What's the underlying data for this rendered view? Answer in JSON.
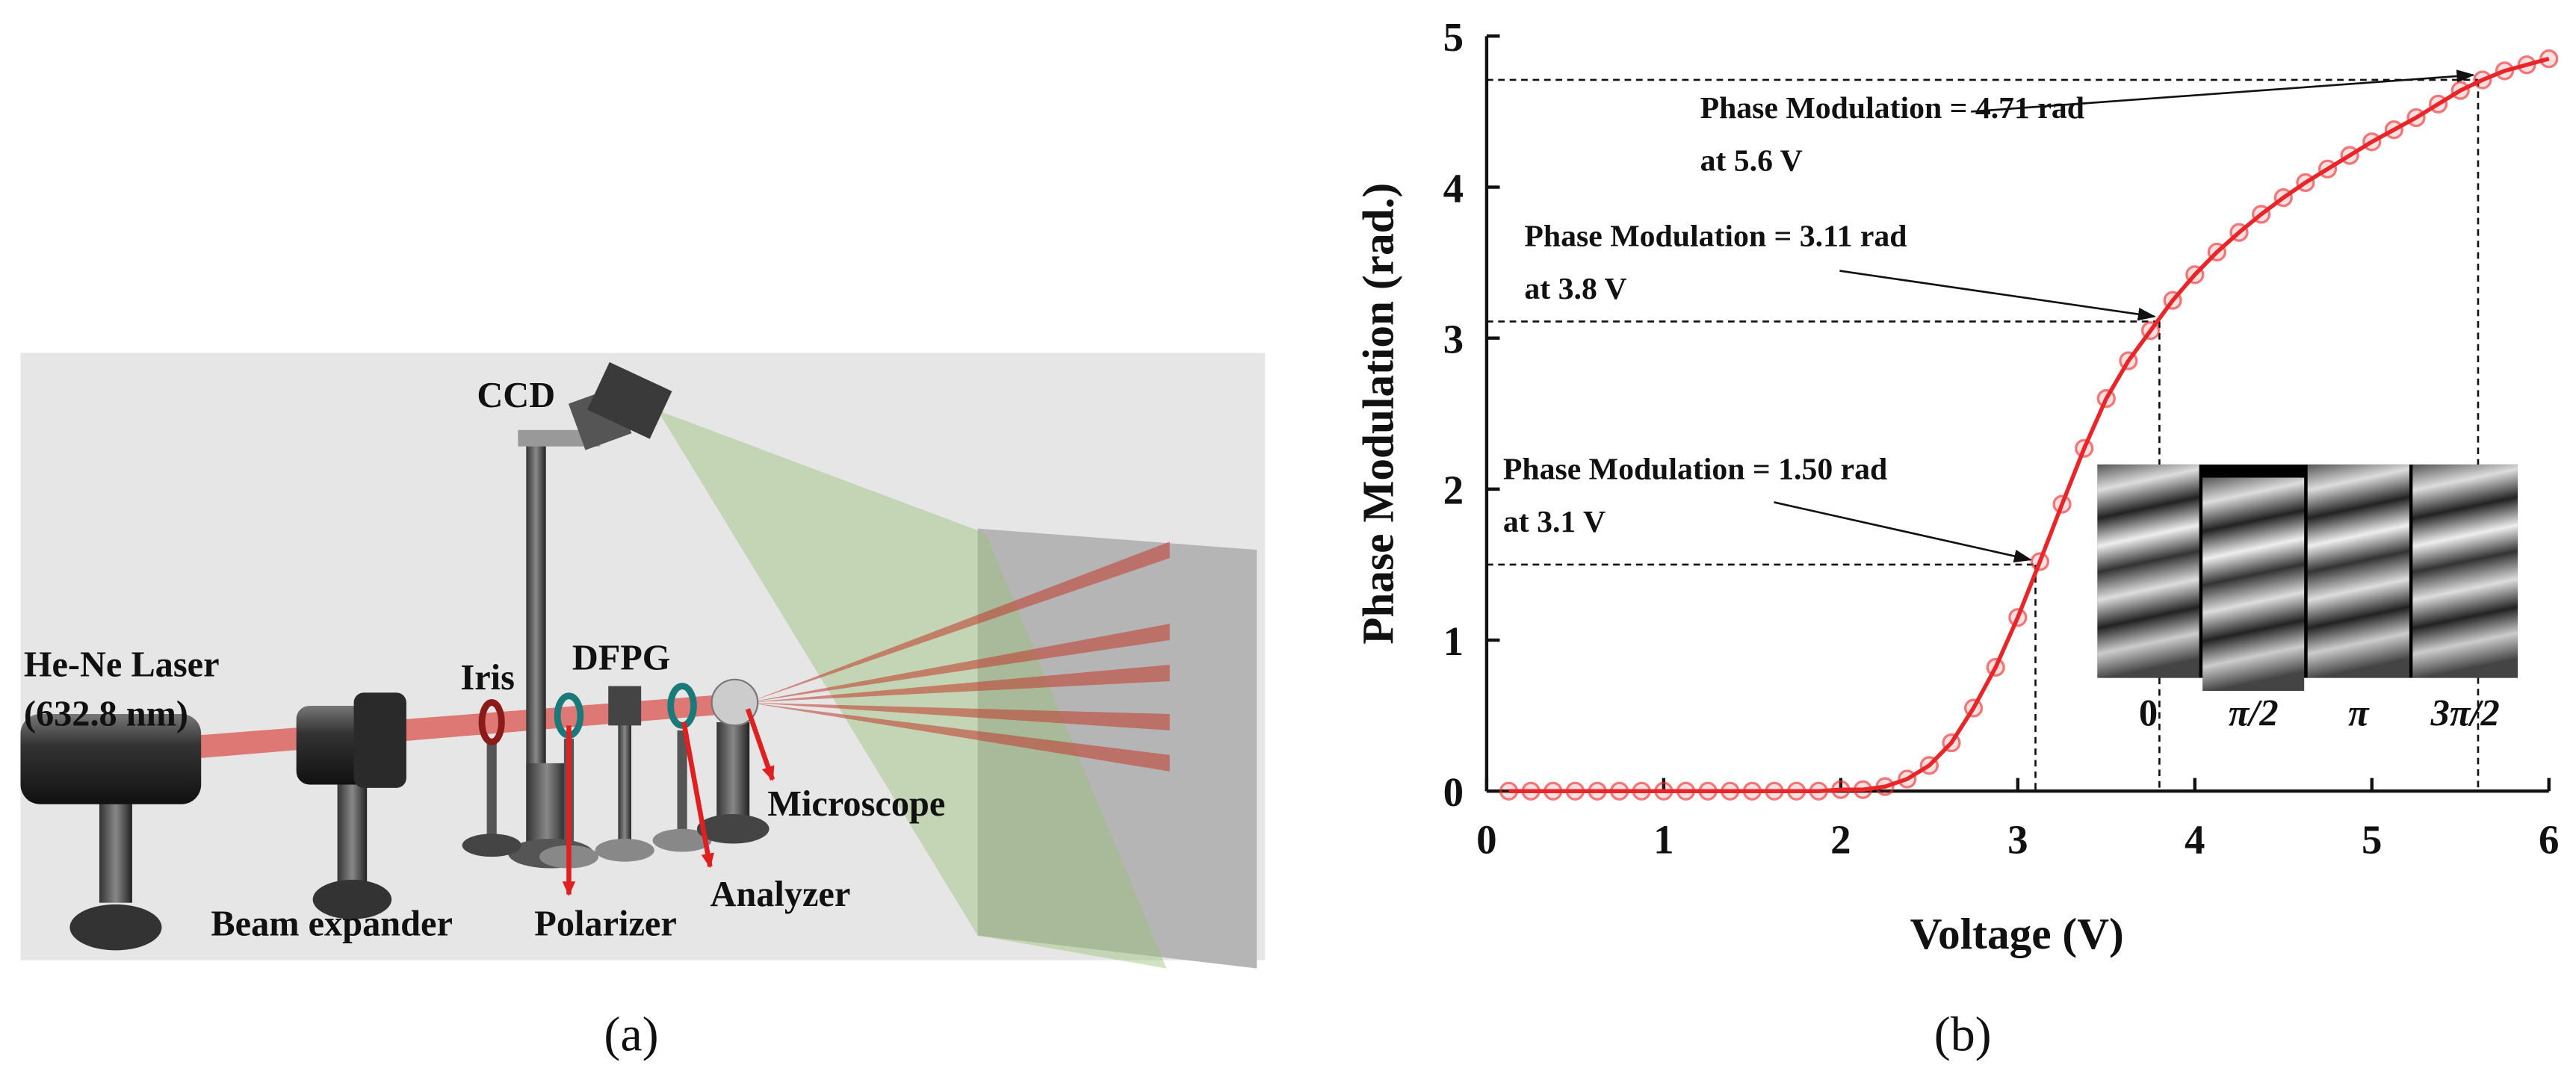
{
  "diagram": {
    "labels": [
      "CCD",
      "He-Ne Laser",
      "(632.8 nm)",
      "Beam expander",
      "Iris",
      "DFPG",
      "Polarizer",
      "Analyzer",
      "Microscope"
    ],
    "caption": "(a)"
  },
  "chart_data": {
    "type": "line",
    "caption": "(b)",
    "xlabel": "Voltage (V)",
    "ylabel": "Phase Modulation (rad.)",
    "xlim": [
      0,
      6
    ],
    "ylim": [
      0,
      5
    ],
    "xticks": [
      0,
      1,
      2,
      3,
      4,
      5,
      6
    ],
    "yticks": [
      0,
      1,
      2,
      3,
      4,
      5
    ],
    "x": [
      0.125,
      0.25,
      0.375,
      0.5,
      0.625,
      0.75,
      0.875,
      1.0,
      1.125,
      1.25,
      1.375,
      1.5,
      1.625,
      1.75,
      1.875,
      2.0,
      2.125,
      2.25,
      2.375,
      2.5,
      2.625,
      2.75,
      2.875,
      3.0,
      3.125,
      3.25,
      3.375,
      3.5,
      3.625,
      3.75,
      3.875,
      4.0,
      4.125,
      4.25,
      4.375,
      4.5,
      4.625,
      4.75,
      4.875,
      5.0,
      5.125,
      5.25,
      5.375,
      5.5,
      5.625,
      5.75,
      5.875,
      6.0
    ],
    "series": [
      {
        "color": "#e8262a",
        "values": [
          0,
          0,
          0,
          0,
          0,
          0,
          0,
          0,
          0,
          0,
          0,
          0,
          0,
          0,
          0,
          0.01,
          0.01,
          0.03,
          0.08,
          0.17,
          0.32,
          0.55,
          0.82,
          1.15,
          1.52,
          1.9,
          2.27,
          2.6,
          2.85,
          3.05,
          3.25,
          3.42,
          3.57,
          3.7,
          3.82,
          3.93,
          4.03,
          4.12,
          4.21,
          4.3,
          4.38,
          4.46,
          4.55,
          4.64,
          4.71,
          4.77,
          4.81,
          4.85
        ]
      }
    ],
    "annotations": [
      {
        "text": [
          "Phase Modulation = 4.71 rad",
          "at 5.6 V"
        ],
        "x": 5.6,
        "y": 4.71
      },
      {
        "text": [
          "Phase Modulation = 3.11 rad",
          "at 3.8 V"
        ],
        "x": 3.8,
        "y": 3.11
      },
      {
        "text": [
          "Phase Modulation = 1.50 rad",
          "at 3.1 V"
        ],
        "x": 3.1,
        "y": 1.5
      }
    ],
    "inset_labels": [
      "0",
      "π/2",
      "π",
      "3π/2"
    ]
  }
}
